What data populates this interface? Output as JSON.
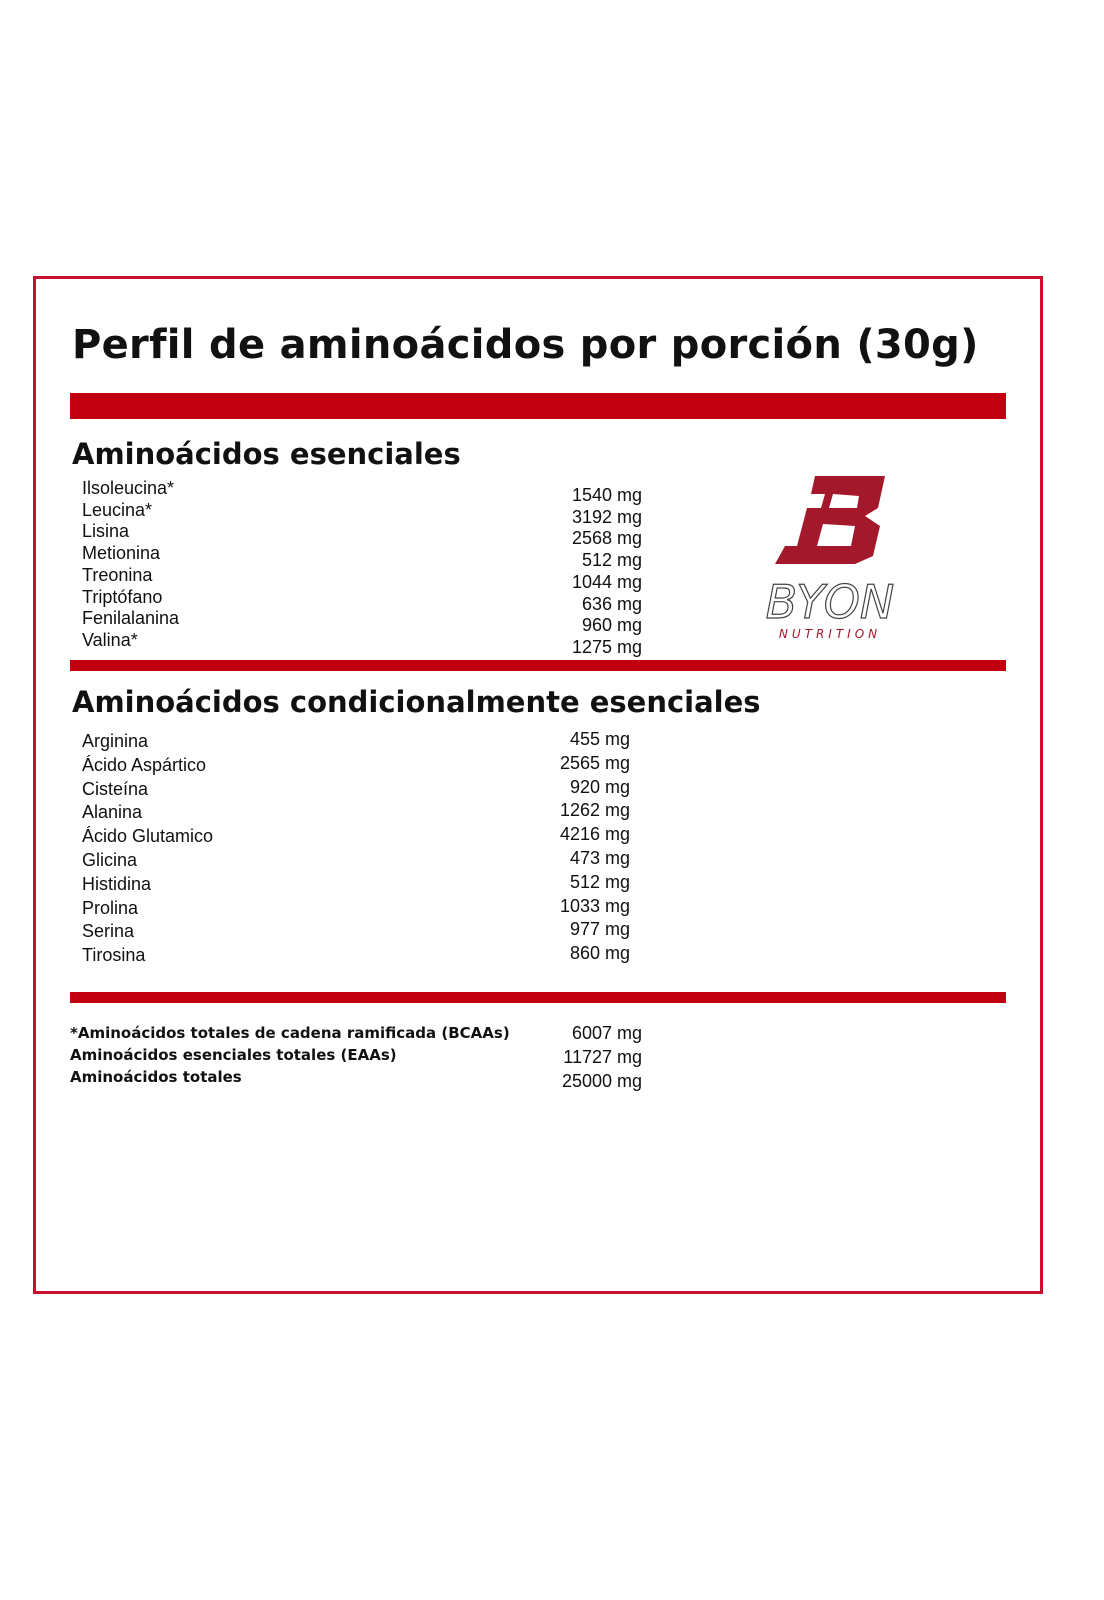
{
  "title": "Perfil de aminoácidos por porción (30g)",
  "colors": {
    "accent": "#c00010",
    "border": "#c8102e",
    "logo": "#a3182a"
  },
  "logo": {
    "brand": "BYON",
    "tagline": "NUTRITION"
  },
  "essential": {
    "heading": "Aminoácidos esenciales",
    "items": [
      {
        "name": "Ilsoleucina*",
        "value": "1540 mg"
      },
      {
        "name": "Leucina*",
        "value": "3192 mg"
      },
      {
        "name": "Lisina",
        "value": "2568 mg"
      },
      {
        "name": "Metionina",
        "value": "512 mg"
      },
      {
        "name": "Treonina",
        "value": "1044 mg"
      },
      {
        "name": "Triptófano",
        "value": "636 mg"
      },
      {
        "name": "Fenilalanina",
        "value": "960 mg"
      },
      {
        "name": "Valina*",
        "value": "1275 mg"
      }
    ]
  },
  "conditional": {
    "heading": "Aminoácidos condicionalmente esenciales",
    "items": [
      {
        "name": "Arginina",
        "value": "455 mg"
      },
      {
        "name": "Ácido Aspártico",
        "value": "2565 mg"
      },
      {
        "name": "Cisteína",
        "value": "920 mg"
      },
      {
        "name": "Alanina",
        "value": "1262 mg"
      },
      {
        "name": "Ácido Glutamico",
        "value": "4216 mg"
      },
      {
        "name": "Glicina",
        "value": "473 mg"
      },
      {
        "name": "Histidina",
        "value": "512 mg"
      },
      {
        "name": "Prolina",
        "value": "1033 mg"
      },
      {
        "name": "Serina",
        "value": "977 mg"
      },
      {
        "name": "Tirosina",
        "value": "860 mg"
      }
    ]
  },
  "totals": [
    {
      "name": "*Aminoácidos totales de cadena ramificada (BCAAs)",
      "value": "6007 mg"
    },
    {
      "name": "Aminoácidos esenciales totales (EAAs)",
      "value": "11727 mg"
    },
    {
      "name": "Aminoácidos totales",
      "value": "25000 mg"
    }
  ]
}
